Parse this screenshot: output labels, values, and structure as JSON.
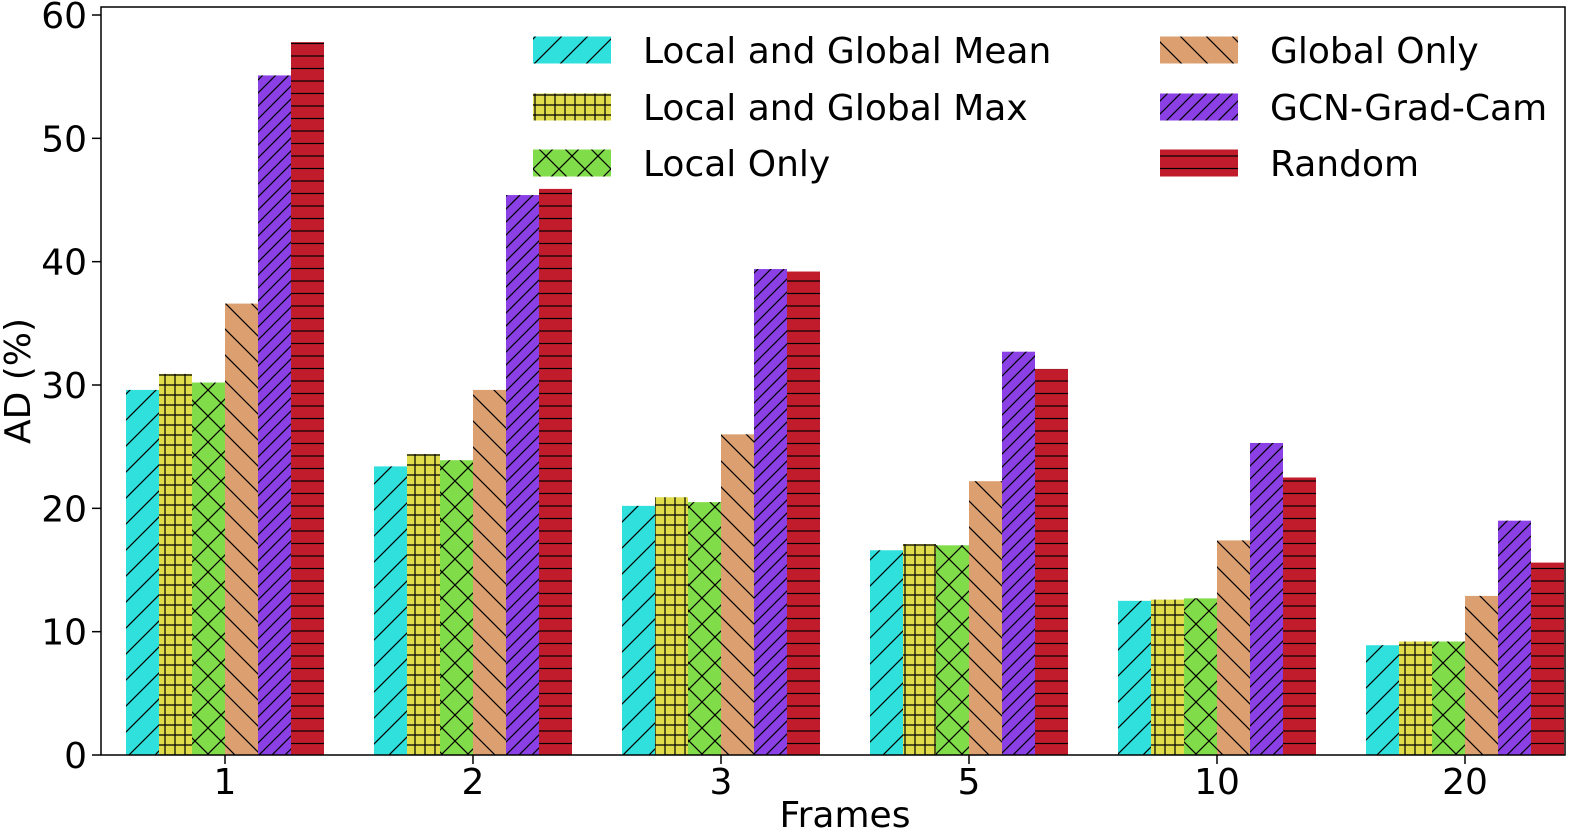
{
  "chart_data": {
    "type": "bar",
    "xlabel": "Frames",
    "ylabel": "AD (%)",
    "ylim": [
      0,
      60
    ],
    "yticks": [
      0,
      10,
      20,
      30,
      40,
      50,
      60
    ],
    "categories": [
      "1",
      "2",
      "3",
      "5",
      "10",
      "20"
    ],
    "grid": false,
    "legend": {
      "placement": "top-right",
      "columns": 2
    },
    "series": [
      {
        "name": "Local and Global Mean",
        "color": "#30e0dc",
        "hatch": "forward-diagonal",
        "values": [
          29.6,
          23.4,
          20.2,
          16.6,
          12.5,
          8.9
        ]
      },
      {
        "name": "Local and Global Max",
        "color": "#e0dc4c",
        "hatch": "grid",
        "values": [
          30.9,
          24.4,
          20.9,
          17.1,
          12.6,
          9.2
        ]
      },
      {
        "name": "Local Only",
        "color": "#80dc48",
        "hatch": "cross-diagonal",
        "values": [
          30.2,
          23.9,
          20.5,
          17.0,
          12.7,
          9.2
        ]
      },
      {
        "name": "Global Only",
        "color": "#dca070",
        "hatch": "back-diagonal",
        "values": [
          36.6,
          29.6,
          26.0,
          22.2,
          17.4,
          12.9
        ]
      },
      {
        "name": "GCN-Grad-Cam",
        "color": "#8a40e4",
        "hatch": "dense-forward-diagonal",
        "values": [
          55.1,
          45.4,
          39.4,
          32.7,
          25.3,
          19.0
        ]
      },
      {
        "name": "Random",
        "color": "#c01c2c",
        "hatch": "horizontal",
        "values": [
          57.8,
          45.9,
          39.2,
          31.3,
          22.5,
          15.6
        ]
      }
    ]
  }
}
